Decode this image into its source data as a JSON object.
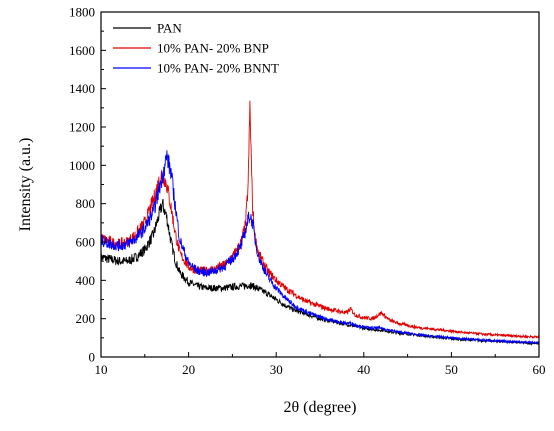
{
  "chart_data": {
    "type": "line",
    "title": "",
    "xlabel": "2θ (degree)",
    "ylabel": "Intensity (a.u.)",
    "xlim": [
      10,
      60
    ],
    "ylim": [
      0,
      1800
    ],
    "x_ticks": [
      "10",
      "20",
      "30",
      "40",
      "50",
      "60"
    ],
    "y_ticks": [
      "0",
      "200",
      "400",
      "600",
      "800",
      "1000",
      "1200",
      "1400",
      "1600",
      "1800"
    ],
    "grid": false,
    "legend_position": "top-left",
    "x": [
      10,
      11,
      12,
      13,
      14,
      15,
      16,
      16.5,
      17,
      17.5,
      18,
      18.5,
      19,
      20,
      21,
      22,
      23,
      24,
      25,
      26,
      26.5,
      26.8,
      27,
      27.3,
      27.6,
      28,
      29,
      30,
      31,
      32,
      33,
      34,
      35,
      36,
      37,
      38,
      38.5,
      39,
      40,
      41,
      41.5,
      42,
      42.5,
      43,
      44,
      45,
      46,
      47,
      48,
      49,
      50,
      51,
      52,
      53,
      54,
      55,
      56,
      57,
      58,
      59,
      60
    ],
    "series": [
      {
        "name": "PAN",
        "color": "#000000",
        "values": [
          520,
          510,
          500,
          500,
          520,
          560,
          640,
          720,
          800,
          730,
          600,
          500,
          440,
          390,
          370,
          360,
          360,
          360,
          365,
          370,
          372,
          374,
          375,
          370,
          365,
          355,
          330,
          300,
          270,
          245,
          230,
          215,
          200,
          190,
          180,
          170,
          165,
          160,
          150,
          145,
          140,
          140,
          138,
          130,
          125,
          120,
          115,
          110,
          105,
          100,
          95,
          92,
          90,
          87,
          85,
          82,
          80,
          78,
          75,
          72,
          70
        ]
      },
      {
        "name": "10% PAN- 20% BNP",
        "color": "#e00000",
        "values": [
          620,
          600,
          590,
          600,
          640,
          700,
          820,
          900,
          960,
          900,
          780,
          640,
          540,
          470,
          450,
          450,
          460,
          480,
          520,
          600,
          690,
          900,
          1310,
          780,
          620,
          540,
          450,
          400,
          360,
          330,
          300,
          280,
          265,
          250,
          240,
          230,
          250,
          220,
          205,
          200,
          215,
          230,
          210,
          190,
          175,
          165,
          155,
          150,
          145,
          140,
          135,
          130,
          125,
          122,
          118,
          115,
          112,
          110,
          108,
          106,
          104
        ]
      },
      {
        "name": "10% PAN- 20% BNNT",
        "color": "#0000ff",
        "values": [
          610,
          590,
          580,
          590,
          620,
          670,
          760,
          850,
          940,
          1050,
          960,
          780,
          610,
          490,
          450,
          440,
          450,
          470,
          510,
          580,
          660,
          720,
          740,
          700,
          610,
          520,
          420,
          360,
          310,
          270,
          245,
          225,
          210,
          195,
          185,
          175,
          178,
          168,
          155,
          150,
          152,
          150,
          145,
          140,
          130,
          125,
          118,
          112,
          108,
          104,
          100,
          96,
          93,
          90,
          87,
          84,
          82,
          80,
          78,
          76,
          74
        ]
      }
    ]
  }
}
